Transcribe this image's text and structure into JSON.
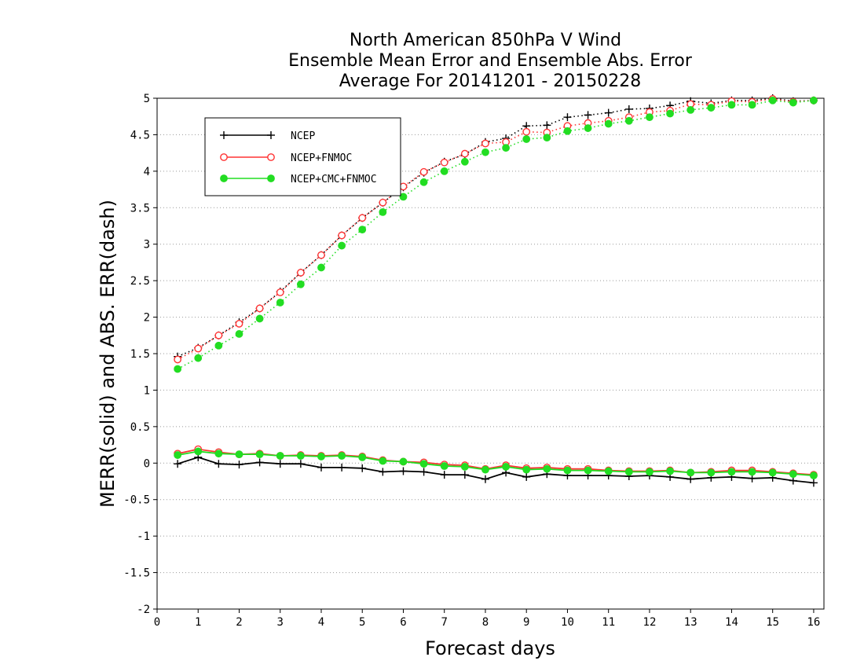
{
  "chart_data": {
    "type": "line",
    "title": [
      "North American 850hPa V Wind",
      "Ensemble Mean Error and Ensemble Abs. Error",
      "Average For 20141201 - 20150228"
    ],
    "xlabel": "Forecast days",
    "ylabel": "MERR(solid) and ABS. ERR(dash)",
    "xlim": [
      0,
      16.25
    ],
    "ylim": [
      -2,
      5
    ],
    "xticks": [
      "0",
      "1",
      "2",
      "3",
      "4",
      "5",
      "6",
      "7",
      "8",
      "9",
      "10",
      "11",
      "12",
      "13",
      "14",
      "15",
      "16"
    ],
    "yticks": [
      "-2",
      "-1.5",
      "-1",
      "-0.5",
      "0",
      "0.5",
      "1",
      "1.5",
      "2",
      "2.5",
      "3",
      "3.5",
      "4",
      "4.5",
      "5"
    ],
    "grid": true,
    "legend_placement": "top-left",
    "x": [
      0.5,
      1,
      1.5,
      2,
      2.5,
      3,
      3.5,
      4,
      4.5,
      5,
      5.5,
      6,
      6.5,
      7,
      7.5,
      8,
      8.5,
      9,
      9.5,
      10,
      10.5,
      11,
      11.5,
      12,
      12.5,
      13,
      13.5,
      14,
      14.5,
      15,
      15.5,
      16
    ],
    "series": [
      {
        "name": "NCEP",
        "color": "#000000",
        "marker": "plus",
        "abs_err": [
          1.46,
          1.58,
          1.75,
          1.93,
          2.12,
          2.35,
          2.61,
          2.85,
          3.12,
          3.36,
          3.57,
          3.78,
          3.98,
          4.13,
          4.23,
          4.4,
          4.45,
          4.62,
          4.63,
          4.74,
          4.77,
          4.8,
          4.85,
          4.86,
          4.9,
          4.96,
          4.93,
          4.97,
          4.97,
          5.0,
          4.96,
          4.97
        ],
        "mean_err": [
          -0.01,
          0.08,
          -0.01,
          -0.02,
          0.01,
          -0.01,
          -0.01,
          -0.06,
          -0.06,
          -0.07,
          -0.12,
          -0.11,
          -0.12,
          -0.16,
          -0.16,
          -0.22,
          -0.13,
          -0.19,
          -0.15,
          -0.17,
          -0.17,
          -0.17,
          -0.18,
          -0.17,
          -0.19,
          -0.22,
          -0.2,
          -0.19,
          -0.21,
          -0.2,
          -0.24,
          -0.27
        ]
      },
      {
        "name": "NCEP+FNMOC",
        "color": "#ff3333",
        "marker": "circle",
        "abs_err": [
          1.42,
          1.57,
          1.75,
          1.91,
          2.12,
          2.34,
          2.61,
          2.85,
          3.12,
          3.36,
          3.57,
          3.79,
          3.99,
          4.12,
          4.24,
          4.38,
          4.4,
          4.54,
          4.53,
          4.62,
          4.66,
          4.69,
          4.74,
          4.81,
          4.83,
          4.92,
          4.91,
          4.96,
          4.95,
          4.99,
          4.95,
          4.97
        ],
        "mean_err": [
          0.13,
          0.19,
          0.15,
          0.12,
          0.13,
          0.1,
          0.11,
          0.1,
          0.11,
          0.09,
          0.04,
          0.02,
          0.01,
          -0.02,
          -0.03,
          -0.08,
          -0.03,
          -0.07,
          -0.06,
          -0.08,
          -0.08,
          -0.1,
          -0.11,
          -0.11,
          -0.1,
          -0.13,
          -0.12,
          -0.1,
          -0.1,
          -0.12,
          -0.14,
          -0.16
        ]
      },
      {
        "name": "NCEP+CMC+FNMOC",
        "color": "#22dd22",
        "marker": "filled-circle",
        "abs_err": [
          1.29,
          1.44,
          1.61,
          1.77,
          1.98,
          2.2,
          2.45,
          2.68,
          2.98,
          3.2,
          3.44,
          3.65,
          3.85,
          4.0,
          4.13,
          4.26,
          4.32,
          4.44,
          4.46,
          4.55,
          4.59,
          4.65,
          4.69,
          4.74,
          4.79,
          4.84,
          4.87,
          4.91,
          4.91,
          4.97,
          4.94,
          4.97
        ],
        "mean_err": [
          0.11,
          0.16,
          0.13,
          0.12,
          0.12,
          0.1,
          0.1,
          0.09,
          0.1,
          0.08,
          0.03,
          0.02,
          -0.01,
          -0.04,
          -0.05,
          -0.09,
          -0.05,
          -0.09,
          -0.08,
          -0.1,
          -0.1,
          -0.11,
          -0.12,
          -0.12,
          -0.11,
          -0.13,
          -0.13,
          -0.12,
          -0.12,
          -0.13,
          -0.15,
          -0.17
        ]
      }
    ]
  }
}
